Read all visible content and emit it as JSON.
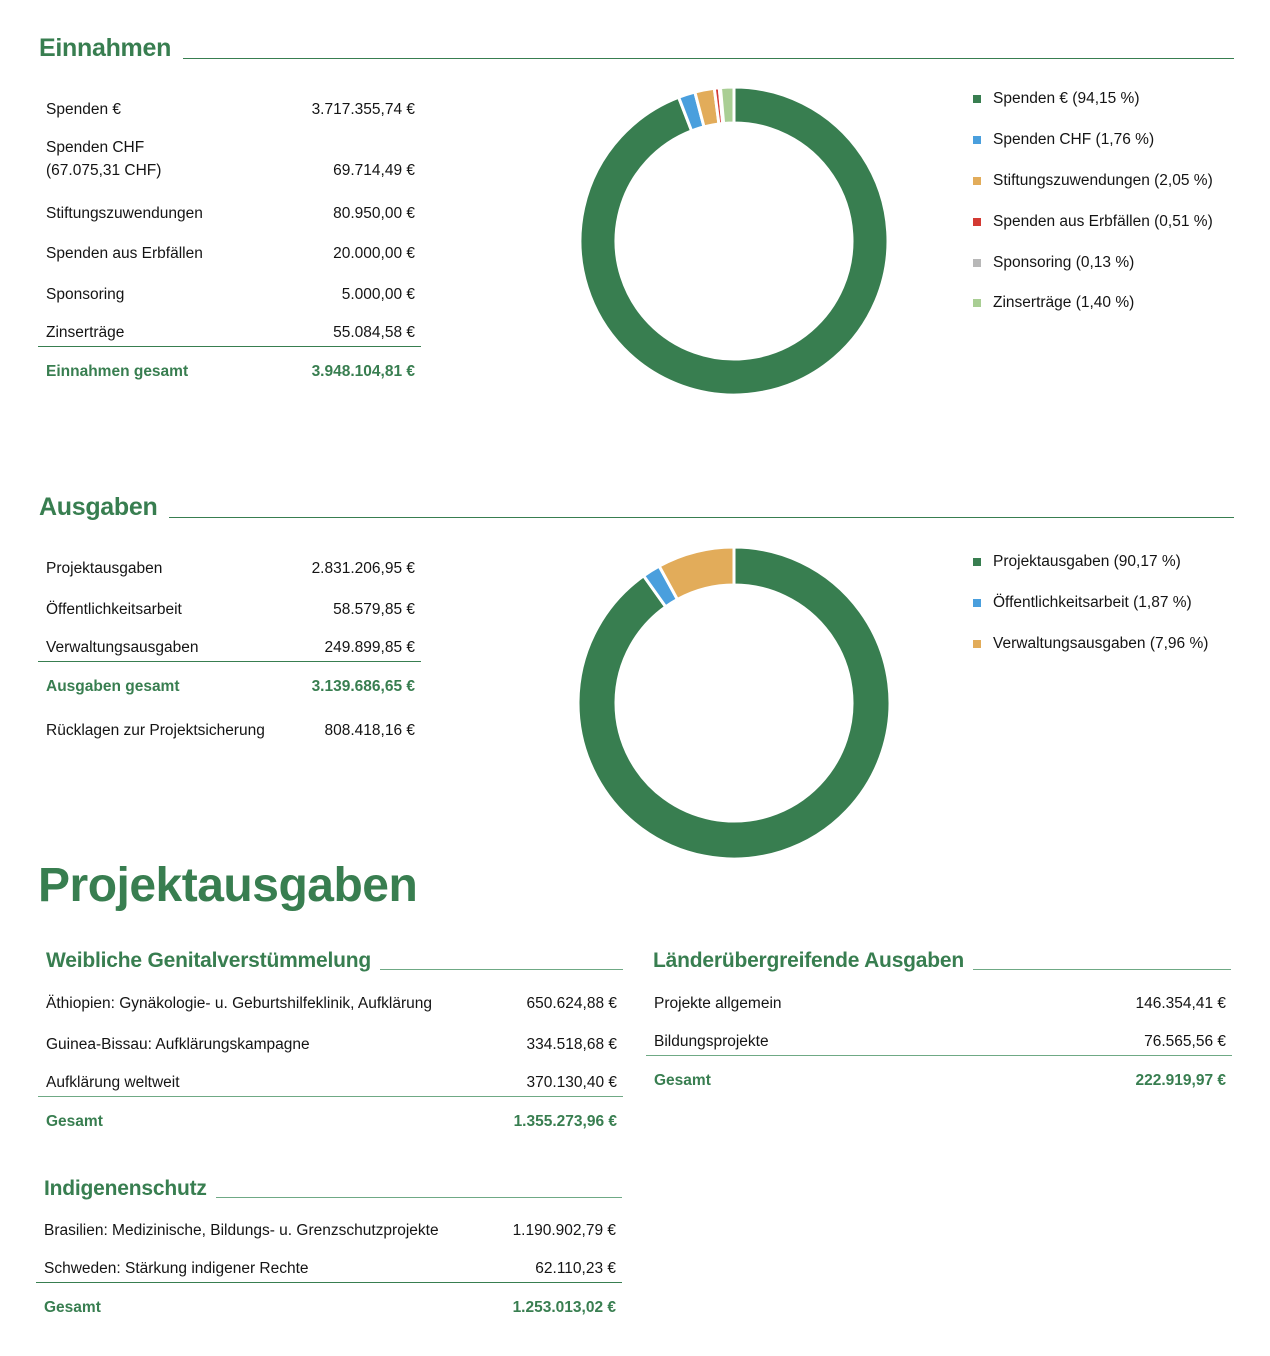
{
  "einnahmen": {
    "title": "Einnahmen",
    "rows": [
      {
        "label": "Spenden €",
        "value": "3.717.355,74 €"
      },
      {
        "label": "Spenden CHF",
        "label2": "(67.075,31 CHF)",
        "value": "69.714,49 €"
      },
      {
        "label": "Stiftungszuwendungen",
        "value": "80.950,00 €"
      },
      {
        "label": "Spenden aus Erbfällen",
        "value": "20.000,00 €"
      },
      {
        "label": "Sponsoring",
        "value": "5.000,00 €"
      },
      {
        "label": "Zinserträge",
        "value": "55.084,58 €"
      }
    ],
    "total": {
      "label": "Einnahmen gesamt",
      "value": "3.948.104,81 €"
    },
    "legend": [
      {
        "label": "Spenden € (94,15 %)",
        "color": "#387E50"
      },
      {
        "label": "Spenden CHF (1,76 %)",
        "color": "#4A9FDD"
      },
      {
        "label": "Stiftungszuwendungen (2,05 %)",
        "color": "#E2AC5A"
      },
      {
        "label": "Spenden aus Erbfällen (0,51 %)",
        "color": "#D33A33"
      },
      {
        "label": "Sponsoring (0,13 %)",
        "color": "#B8B8B8"
      },
      {
        "label": "Zinserträge (1,40 %)",
        "color": "#A9CE94"
      }
    ]
  },
  "ausgaben": {
    "title": "Ausgaben",
    "rows": [
      {
        "label": "Projektausgaben",
        "value": "2.831.206,95 €"
      },
      {
        "label": "Öffentlichkeitsarbeit",
        "value": "58.579,85 €"
      },
      {
        "label": "Verwaltungsausgaben",
        "value": "249.899,85 €"
      }
    ],
    "total": {
      "label": "Ausgaben gesamt",
      "value": "3.139.686,65 €"
    },
    "extra": {
      "label": "Rücklagen zur Projektsicherung",
      "value": "808.418,16 €"
    },
    "legend": [
      {
        "label": "Projektausgaben (90,17 %)",
        "color": "#387E50"
      },
      {
        "label": "Öffentlichkeitsarbeit (1,87 %)",
        "color": "#4A9FDD"
      },
      {
        "label": "Verwaltungsausgaben (7,96 %)",
        "color": "#E2AC5A"
      }
    ]
  },
  "projektausgaben": {
    "title": "Projektausgaben",
    "fgm": {
      "title": "Weibliche Genitalverstümmelung",
      "rows": [
        {
          "label": "Äthiopien: Gynäkologie- u. Geburtshilfeklinik, Aufklärung",
          "value": "650.624,88 €"
        },
        {
          "label": "Guinea-Bissau: Aufklärungskampagne",
          "value": "334.518,68 €"
        },
        {
          "label": "Aufklärung weltweit",
          "value": "370.130,40 €"
        }
      ],
      "total": {
        "label": "Gesamt",
        "value": "1.355.273,96 €"
      }
    },
    "laender": {
      "title": "Länderübergreifende Ausgaben",
      "rows": [
        {
          "label": "Projekte allgemein",
          "value": "146.354,41 €"
        },
        {
          "label": "Bildungsprojekte",
          "value": "76.565,56 €"
        }
      ],
      "total": {
        "label": "Gesamt",
        "value": "222.919,97 €"
      }
    },
    "indigenen": {
      "title": "Indigenenschutz",
      "rows": [
        {
          "label": "Brasilien: Medizinische, Bildungs- u. Grenzschutzprojekte",
          "value": "1.190.902,79 €"
        },
        {
          "label": "Schweden: Stärkung indigener Rechte",
          "value": "62.110,23 €"
        }
      ],
      "total": {
        "label": "Gesamt",
        "value": "1.253.013,02 €"
      }
    }
  },
  "chart_data": [
    {
      "type": "pie",
      "variant": "donut",
      "title": "Einnahmen",
      "categories": [
        "Spenden €",
        "Spenden CHF",
        "Stiftungszuwendungen",
        "Spenden aus Erbfällen",
        "Sponsoring",
        "Zinserträge"
      ],
      "values": [
        94.15,
        1.76,
        2.05,
        0.51,
        0.13,
        1.4
      ],
      "amounts": [
        3717355.74,
        69714.49,
        80950.0,
        20000.0,
        5000.0,
        55084.58
      ],
      "colors": [
        "#387E50",
        "#4A9FDD",
        "#E2AC5A",
        "#D33A33",
        "#B8B8B8",
        "#A9CE94"
      ],
      "unit": "%",
      "legend_position": "right"
    },
    {
      "type": "pie",
      "variant": "donut",
      "title": "Ausgaben",
      "categories": [
        "Projektausgaben",
        "Öffentlichkeitsarbeit",
        "Verwaltungsausgaben"
      ],
      "values": [
        90.17,
        1.87,
        7.96
      ],
      "amounts": [
        2831206.95,
        58579.85,
        249899.85
      ],
      "colors": [
        "#387E50",
        "#4A9FDD",
        "#E2AC5A"
      ],
      "unit": "%",
      "legend_position": "right"
    }
  ]
}
